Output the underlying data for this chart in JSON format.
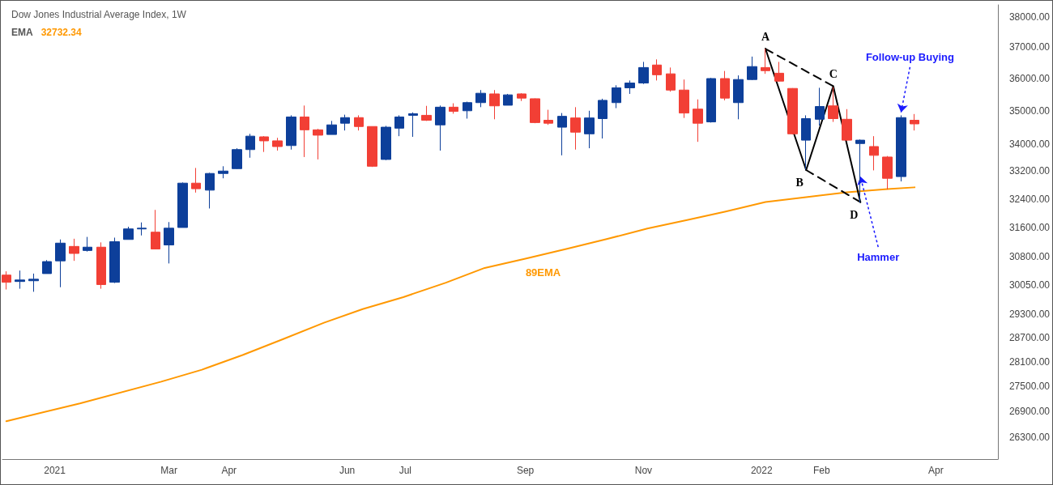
{
  "chart_data": {
    "type": "candlestick",
    "title": "Dow Jones Industrial Average Index, 1W",
    "subtitle": "EMA 32732.34",
    "x": [
      "2020-12-07",
      "2020-12-14",
      "2020-12-21",
      "2020-12-28",
      "2021-01-04",
      "2021-01-11",
      "2021-01-18",
      "2021-01-25",
      "2021-02-01",
      "2021-02-08",
      "2021-02-15",
      "2021-02-22",
      "2021-03-01",
      "2021-03-08",
      "2021-03-15",
      "2021-03-22",
      "2021-03-29",
      "2021-04-05",
      "2021-04-12",
      "2021-04-19",
      "2021-04-26",
      "2021-05-03",
      "2021-05-10",
      "2021-05-17",
      "2021-05-24",
      "2021-05-31",
      "2021-06-07",
      "2021-06-14",
      "2021-06-21",
      "2021-06-28",
      "2021-07-05",
      "2021-07-12",
      "2021-07-19",
      "2021-07-26",
      "2021-08-02",
      "2021-08-09",
      "2021-08-16",
      "2021-08-23",
      "2021-08-30",
      "2021-09-06",
      "2021-09-13",
      "2021-09-20",
      "2021-09-27",
      "2021-10-04",
      "2021-10-11",
      "2021-10-18",
      "2021-10-25",
      "2021-11-01",
      "2021-11-08",
      "2021-11-15",
      "2021-11-22",
      "2021-11-29",
      "2021-12-06",
      "2021-12-13",
      "2021-12-20",
      "2021-12-27",
      "2022-01-03",
      "2022-01-10",
      "2022-01-17",
      "2022-01-24",
      "2022-01-31",
      "2022-02-07",
      "2022-02-14",
      "2022-02-21",
      "2022-02-28",
      "2022-03-07",
      "2022-03-14",
      "2022-03-21"
    ],
    "ohlc": [
      [
        30310,
        30410,
        29930,
        30120
      ],
      [
        30140,
        30430,
        29950,
        30180
      ],
      [
        30160,
        30350,
        29870,
        30200
      ],
      [
        30350,
        30710,
        30350,
        30670
      ],
      [
        30690,
        31270,
        29990,
        31170
      ],
      [
        31080,
        31290,
        30690,
        30890
      ],
      [
        30970,
        31340,
        30940,
        31060
      ],
      [
        31060,
        31190,
        29950,
        30060
      ],
      [
        30120,
        31320,
        30100,
        31210
      ],
      [
        31270,
        31620,
        31270,
        31560
      ],
      [
        31560,
        31740,
        31380,
        31580
      ],
      [
        31470,
        32090,
        31000,
        31010
      ],
      [
        31120,
        31750,
        30620,
        31580
      ],
      [
        31600,
        32870,
        31600,
        32850
      ],
      [
        32850,
        33290,
        32580,
        32690
      ],
      [
        32650,
        33150,
        32130,
        33130
      ],
      [
        33130,
        33340,
        32990,
        33200
      ],
      [
        33270,
        33870,
        33260,
        33830
      ],
      [
        33830,
        34300,
        33590,
        34230
      ],
      [
        34210,
        34230,
        33760,
        34090
      ],
      [
        34090,
        34180,
        33800,
        33920
      ],
      [
        33950,
        34860,
        33830,
        34810
      ],
      [
        34810,
        35160,
        33610,
        34420
      ],
      [
        34420,
        34450,
        33540,
        34260
      ],
      [
        34280,
        34690,
        34280,
        34570
      ],
      [
        34620,
        34880,
        34400,
        34790
      ],
      [
        34790,
        34860,
        34400,
        34520
      ],
      [
        34520,
        34520,
        33320,
        33340
      ],
      [
        33540,
        34540,
        33520,
        34500
      ],
      [
        34470,
        34860,
        34230,
        34810
      ],
      [
        34860,
        34950,
        34210,
        34910
      ],
      [
        34860,
        35150,
        34690,
        34710
      ],
      [
        34570,
        35160,
        33800,
        35110
      ],
      [
        35110,
        35230,
        34910,
        34980
      ],
      [
        35000,
        35280,
        34760,
        35250
      ],
      [
        35250,
        35640,
        35110,
        35540
      ],
      [
        35520,
        35640,
        34740,
        35150
      ],
      [
        35170,
        35520,
        35170,
        35490
      ],
      [
        35520,
        35540,
        35300,
        35390
      ],
      [
        35370,
        35380,
        34620,
        34640
      ],
      [
        34710,
        35030,
        34570,
        34620
      ],
      [
        34500,
        34930,
        33660,
        34830
      ],
      [
        34780,
        35110,
        33830,
        34350
      ],
      [
        34300,
        35000,
        33870,
        34780
      ],
      [
        34760,
        35370,
        34160,
        35320
      ],
      [
        35250,
        35790,
        35080,
        35710
      ],
      [
        35710,
        35940,
        35520,
        35860
      ],
      [
        35860,
        36530,
        35830,
        36350
      ],
      [
        36430,
        36610,
        35940,
        36120
      ],
      [
        36150,
        36350,
        35590,
        35640
      ],
      [
        35640,
        35970,
        34780,
        34930
      ],
      [
        35050,
        35350,
        34060,
        34620
      ],
      [
        34660,
        36020,
        34640,
        36000
      ],
      [
        36000,
        36240,
        35320,
        35390
      ],
      [
        35250,
        36100,
        34740,
        35970
      ],
      [
        35970,
        36700,
        35950,
        36380
      ],
      [
        36350,
        36950,
        36150,
        36250
      ],
      [
        36170,
        36530,
        35900,
        35920
      ],
      [
        35690,
        35700,
        34280,
        34300
      ],
      [
        34110,
        34860,
        33250,
        34760
      ],
      [
        34740,
        35710,
        34550,
        35130
      ],
      [
        35150,
        35730,
        34660,
        34760
      ],
      [
        34740,
        35050,
        34090,
        34110
      ],
      [
        34010,
        34130,
        32300,
        34110
      ],
      [
        33920,
        34230,
        33220,
        33660
      ],
      [
        33610,
        33640,
        32670,
        32990
      ],
      [
        33040,
        34860,
        32900,
        34790
      ],
      [
        34710,
        34900,
        34400,
        34600
      ]
    ],
    "colors": [
      "#f23f35",
      "#0d3f9a",
      "#0d3f9a",
      "#0d3f9a",
      "#0d3f9a",
      "#f23f35",
      "#0d3f9a",
      "#f23f35",
      "#0d3f9a",
      "#0d3f9a",
      "#0d3f9a",
      "#f23f35",
      "#0d3f9a",
      "#0d3f9a",
      "#f23f35",
      "#0d3f9a",
      "#0d3f9a",
      "#0d3f9a",
      "#0d3f9a",
      "#f23f35",
      "#f23f35",
      "#0d3f9a",
      "#f23f35",
      "#f23f35",
      "#0d3f9a",
      "#0d3f9a",
      "#f23f35",
      "#f23f35",
      "#0d3f9a",
      "#0d3f9a",
      "#0d3f9a",
      "#f23f35",
      "#0d3f9a",
      "#f23f35",
      "#0d3f9a",
      "#0d3f9a",
      "#f23f35",
      "#0d3f9a",
      "#f23f35",
      "#f23f35",
      "#f23f35",
      "#0d3f9a",
      "#f23f35",
      "#0d3f9a",
      "#0d3f9a",
      "#0d3f9a",
      "#0d3f9a",
      "#0d3f9a",
      "#f23f35",
      "#f23f35",
      "#f23f35",
      "#f23f35",
      "#0d3f9a",
      "#f23f35",
      "#0d3f9a",
      "#0d3f9a",
      "#f23f35",
      "#f23f35",
      "#f23f35",
      "#0d3f9a",
      "#0d3f9a",
      "#f23f35",
      "#f23f35",
      "#0d3f9a",
      "#f23f35",
      "#f23f35",
      "#0d3f9a",
      "#f23f35"
    ],
    "series": [
      {
        "type": "line",
        "name": "89EMA",
        "color": "#ff9800",
        "x": [
          "2020-12-07",
          "2021-01-14",
          "2021-02-25",
          "2021-03-18",
          "2021-04-08",
          "2021-04-29",
          "2021-05-20",
          "2021-06-09",
          "2021-06-30",
          "2021-07-22",
          "2021-08-11",
          "2021-09-01",
          "2021-09-23",
          "2021-10-13",
          "2021-11-03",
          "2021-11-24",
          "2021-12-13",
          "2022-01-03",
          "2022-01-24",
          "2022-02-14",
          "2022-03-07",
          "2022-03-21"
        ],
        "values": [
          26670,
          27090,
          27610,
          27900,
          28260,
          28660,
          29070,
          29420,
          29730,
          30110,
          30500,
          30750,
          31020,
          31280,
          31570,
          31810,
          32040,
          32310,
          32450,
          32590,
          32680,
          32730
        ]
      },
      {
        "type": "line",
        "color": "#000000",
        "line_style": "solid",
        "x": [
          "2022-01-03",
          "2022-01-24",
          "2022-02-07",
          "2022-02-21"
        ],
        "values": [
          36950,
          33230,
          35760,
          32310
        ]
      },
      {
        "type": "line",
        "color": "#000000",
        "line_style": "dashed",
        "x": [
          "2022-01-03",
          "2022-02-07"
        ],
        "values": [
          36950,
          35760
        ]
      },
      {
        "type": "line",
        "color": "#000000",
        "line_style": "dashed",
        "x": [
          "2022-01-24",
          "2022-02-21"
        ],
        "values": [
          33230,
          32310
        ]
      }
    ],
    "annotations": [
      {
        "text": "A",
        "x": "2022-01-03",
        "y": 36950
      },
      {
        "text": "B",
        "x": "2022-01-24",
        "y": 33230
      },
      {
        "text": "C",
        "x": "2022-02-07",
        "y": 35760
      },
      {
        "text": "D",
        "x": "2022-02-21",
        "y": 32310
      },
      {
        "text": "Follow-up Buying",
        "x": "2022-03-14",
        "y": 34950
      },
      {
        "text": "Hammer",
        "x": "2022-02-21",
        "y": 33040
      }
    ],
    "log": "y",
    "xlim": [
      "2020-12-05",
      "2022-05-03"
    ],
    "xticks": [
      {
        "value": "2021-01-01",
        "label": "2021"
      },
      {
        "value": "2021-03-01",
        "label": "Mar"
      },
      {
        "value": "2021-04-01",
        "label": "Apr"
      },
      {
        "value": "2021-06-01",
        "label": "Jun"
      },
      {
        "value": "2021-07-01",
        "label": "Jul"
      },
      {
        "value": "2021-09-01",
        "label": "Sep"
      },
      {
        "value": "2021-11-01",
        "label": "Nov"
      },
      {
        "value": "2022-01-01",
        "label": "2022"
      },
      {
        "value": "2022-02-01",
        "label": "Feb"
      },
      {
        "value": "2022-04-01",
        "label": "Apr"
      }
    ],
    "ylim": [
      25800,
      38400
    ],
    "yticks": [
      {
        "value": 26300,
        "label": "26300.00"
      },
      {
        "value": 26900,
        "label": "26900.00"
      },
      {
        "value": 27500,
        "label": "27500.00"
      },
      {
        "value": 28100,
        "label": "28100.00"
      },
      {
        "value": 28700,
        "label": "28700.00"
      },
      {
        "value": 29300,
        "label": "29300.00"
      },
      {
        "value": 30050,
        "label": "30050.00"
      },
      {
        "value": 30800,
        "label": "30800.00"
      },
      {
        "value": 31600,
        "label": "31600.00"
      },
      {
        "value": 32400,
        "label": "32400.00"
      },
      {
        "value": 33200,
        "label": "33200.00"
      },
      {
        "value": 34000,
        "label": "34000.00"
      },
      {
        "value": 35000,
        "label": "35000.00"
      },
      {
        "value": 36000,
        "label": "36000.00"
      },
      {
        "value": 37000,
        "label": "37000.00"
      },
      {
        "value": 38000,
        "label": "38000.00"
      }
    ]
  }
}
